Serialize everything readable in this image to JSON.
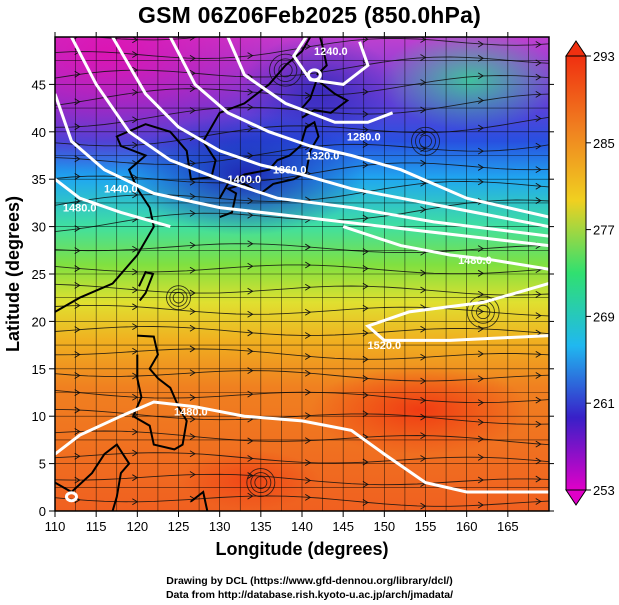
{
  "title": "GSM 06Z06Feb2025 (850.0hPa)",
  "x_axis": {
    "label": "Longitude (degrees)",
    "ticks": [
      "110",
      "115",
      "120",
      "125",
      "130",
      "135",
      "140",
      "145",
      "150",
      "155",
      "160",
      "165"
    ],
    "range": [
      110,
      170
    ]
  },
  "y_axis": {
    "label": "Latitude  (degrees)",
    "ticks": [
      "0",
      "5",
      "10",
      "15",
      "20",
      "25",
      "30",
      "35",
      "40",
      "45"
    ],
    "range": [
      0,
      50
    ]
  },
  "colorbar": {
    "ticks": [
      "253",
      "261",
      "269",
      "277",
      "285",
      "293"
    ],
    "range": [
      253,
      293
    ],
    "colors": [
      "#e000c8",
      "#3820c8",
      "#20b8f0",
      "#30e070",
      "#f0d020",
      "#f08020",
      "#f03010"
    ]
  },
  "contour_labels": [
    {
      "text": "1240.0",
      "lon": 143.5,
      "lat": 48.5
    },
    {
      "text": "1280.0",
      "lon": 147.5,
      "lat": 39.5
    },
    {
      "text": "1320.0",
      "lon": 142.5,
      "lat": 37.5
    },
    {
      "text": "1360.0",
      "lon": 138.5,
      "lat": 36.0
    },
    {
      "text": "1400.0",
      "lon": 133.0,
      "lat": 35.0
    },
    {
      "text": "1440.0",
      "lon": 118.0,
      "lat": 34.0
    },
    {
      "text": "1480.0",
      "lon": 113.0,
      "lat": 32.0
    },
    {
      "text": "1480.0",
      "lon": 161.0,
      "lat": 26.5
    },
    {
      "text": "1520.0",
      "lon": 150.0,
      "lat": 17.5
    },
    {
      "text": "1480.0",
      "lon": 126.5,
      "lat": 10.5
    }
  ],
  "credits": {
    "line1": "Drawing by DCL (https://www.gfd-dennou.org/library/dcl/)",
    "line2": "Data from http://database.rish.kyoto-u.ac.jp/arch/jmadata/"
  }
}
